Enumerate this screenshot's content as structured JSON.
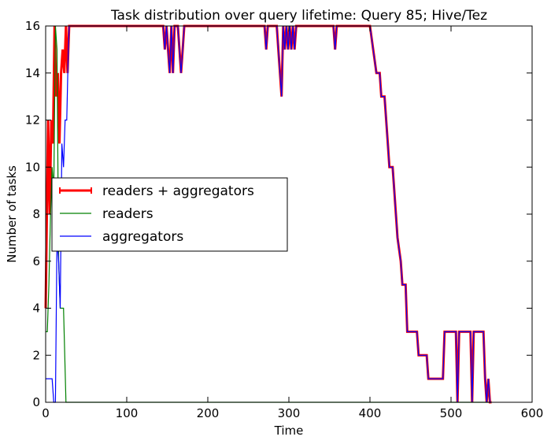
{
  "chart_data": {
    "type": "line",
    "title": "Task distribution over query lifetime: Query 85; Hive/Tez",
    "xlabel": "Time",
    "ylabel": "Number of tasks",
    "xlim": [
      0,
      600
    ],
    "ylim": [
      0,
      16
    ],
    "xticks": [
      "0",
      "100",
      "200",
      "300",
      "400",
      "500",
      "600"
    ],
    "yticks": [
      "0",
      "2",
      "4",
      "6",
      "8",
      "10",
      "12",
      "14",
      "16"
    ],
    "grid": false,
    "legend_position": "center-left",
    "legend": [
      "readers + aggregators",
      "readers",
      "aggregators"
    ],
    "series": [
      {
        "name": "readers + aggregators",
        "color": "#ff0000",
        "points": [
          [
            0,
            4
          ],
          [
            3,
            12
          ],
          [
            5,
            8
          ],
          [
            7,
            12
          ],
          [
            9,
            11
          ],
          [
            11,
            16
          ],
          [
            13,
            13
          ],
          [
            15,
            14
          ],
          [
            17,
            11
          ],
          [
            19,
            14
          ],
          [
            21,
            15
          ],
          [
            23,
            14
          ],
          [
            25,
            16
          ],
          [
            27,
            14
          ],
          [
            29,
            16
          ],
          [
            145,
            16
          ],
          [
            147,
            15
          ],
          [
            149,
            16
          ],
          [
            151,
            15
          ],
          [
            153,
            14
          ],
          [
            155,
            16
          ],
          [
            157,
            14
          ],
          [
            159,
            16
          ],
          [
            163,
            16
          ],
          [
            165,
            15
          ],
          [
            167,
            14
          ],
          [
            169,
            15
          ],
          [
            171,
            16
          ],
          [
            270,
            16
          ],
          [
            272,
            15
          ],
          [
            274,
            16
          ],
          [
            285,
            16
          ],
          [
            287,
            15
          ],
          [
            289,
            14
          ],
          [
            291,
            13
          ],
          [
            293,
            16
          ],
          [
            295,
            15
          ],
          [
            297,
            16
          ],
          [
            299,
            15
          ],
          [
            301,
            16
          ],
          [
            303,
            15
          ],
          [
            305,
            16
          ],
          [
            307,
            15
          ],
          [
            309,
            16
          ],
          [
            355,
            16
          ],
          [
            357,
            15
          ],
          [
            359,
            16
          ],
          [
            400,
            16
          ],
          [
            404,
            15
          ],
          [
            408,
            14
          ],
          [
            412,
            14
          ],
          [
            414,
            13
          ],
          [
            418,
            13
          ],
          [
            420,
            12
          ],
          [
            422,
            11
          ],
          [
            424,
            10
          ],
          [
            428,
            10
          ],
          [
            430,
            9
          ],
          [
            434,
            7
          ],
          [
            438,
            6
          ],
          [
            440,
            5
          ],
          [
            444,
            5
          ],
          [
            446,
            3
          ],
          [
            458,
            3
          ],
          [
            460,
            2
          ],
          [
            470,
            2
          ],
          [
            472,
            1
          ],
          [
            490,
            1
          ],
          [
            492,
            3
          ],
          [
            506,
            3
          ],
          [
            508,
            0
          ],
          [
            510,
            3
          ],
          [
            524,
            3
          ],
          [
            526,
            0
          ],
          [
            528,
            3
          ],
          [
            540,
            3
          ],
          [
            542,
            1
          ],
          [
            544,
            0
          ],
          [
            546,
            1
          ],
          [
            548,
            0
          ],
          [
            550,
            0
          ]
        ]
      },
      {
        "name": "readers",
        "color": "#008000",
        "points": [
          [
            0,
            3
          ],
          [
            2,
            3
          ],
          [
            4,
            5
          ],
          [
            6,
            8
          ],
          [
            8,
            10
          ],
          [
            10,
            9
          ],
          [
            12,
            16
          ],
          [
            14,
            15
          ],
          [
            16,
            6
          ],
          [
            18,
            4
          ],
          [
            22,
            4
          ],
          [
            25,
            0
          ],
          [
            550,
            0
          ]
        ]
      },
      {
        "name": "aggregators",
        "color": "#0000ff",
        "points": [
          [
            0,
            1
          ],
          [
            8,
            1
          ],
          [
            10,
            0
          ],
          [
            12,
            0
          ],
          [
            14,
            7
          ],
          [
            16,
            6
          ],
          [
            18,
            4
          ],
          [
            20,
            11
          ],
          [
            22,
            10
          ],
          [
            24,
            12
          ],
          [
            26,
            12
          ],
          [
            28,
            15
          ],
          [
            29,
            16
          ],
          [
            145,
            16
          ],
          [
            147,
            15
          ],
          [
            149,
            16
          ],
          [
            151,
            15
          ],
          [
            153,
            14
          ],
          [
            155,
            16
          ],
          [
            157,
            14
          ],
          [
            159,
            16
          ],
          [
            163,
            16
          ],
          [
            165,
            15
          ],
          [
            167,
            14
          ],
          [
            169,
            15
          ],
          [
            171,
            16
          ],
          [
            270,
            16
          ],
          [
            272,
            15
          ],
          [
            274,
            16
          ],
          [
            285,
            16
          ],
          [
            287,
            15
          ],
          [
            289,
            14
          ],
          [
            291,
            13
          ],
          [
            293,
            16
          ],
          [
            295,
            15
          ],
          [
            297,
            16
          ],
          [
            299,
            15
          ],
          [
            301,
            16
          ],
          [
            303,
            15
          ],
          [
            305,
            16
          ],
          [
            307,
            15
          ],
          [
            309,
            16
          ],
          [
            355,
            16
          ],
          [
            357,
            15
          ],
          [
            359,
            16
          ],
          [
            400,
            16
          ],
          [
            404,
            15
          ],
          [
            408,
            14
          ],
          [
            412,
            14
          ],
          [
            414,
            13
          ],
          [
            418,
            13
          ],
          [
            420,
            12
          ],
          [
            422,
            11
          ],
          [
            424,
            10
          ],
          [
            428,
            10
          ],
          [
            430,
            9
          ],
          [
            434,
            7
          ],
          [
            438,
            6
          ],
          [
            440,
            5
          ],
          [
            444,
            5
          ],
          [
            446,
            3
          ],
          [
            458,
            3
          ],
          [
            460,
            2
          ],
          [
            470,
            2
          ],
          [
            472,
            1
          ],
          [
            490,
            1
          ],
          [
            492,
            3
          ],
          [
            506,
            3
          ],
          [
            508,
            0
          ],
          [
            510,
            3
          ],
          [
            524,
            3
          ],
          [
            526,
            0
          ],
          [
            528,
            3
          ],
          [
            540,
            3
          ],
          [
            542,
            1
          ],
          [
            544,
            0
          ],
          [
            546,
            1
          ],
          [
            548,
            0
          ],
          [
            550,
            0
          ]
        ]
      }
    ]
  }
}
